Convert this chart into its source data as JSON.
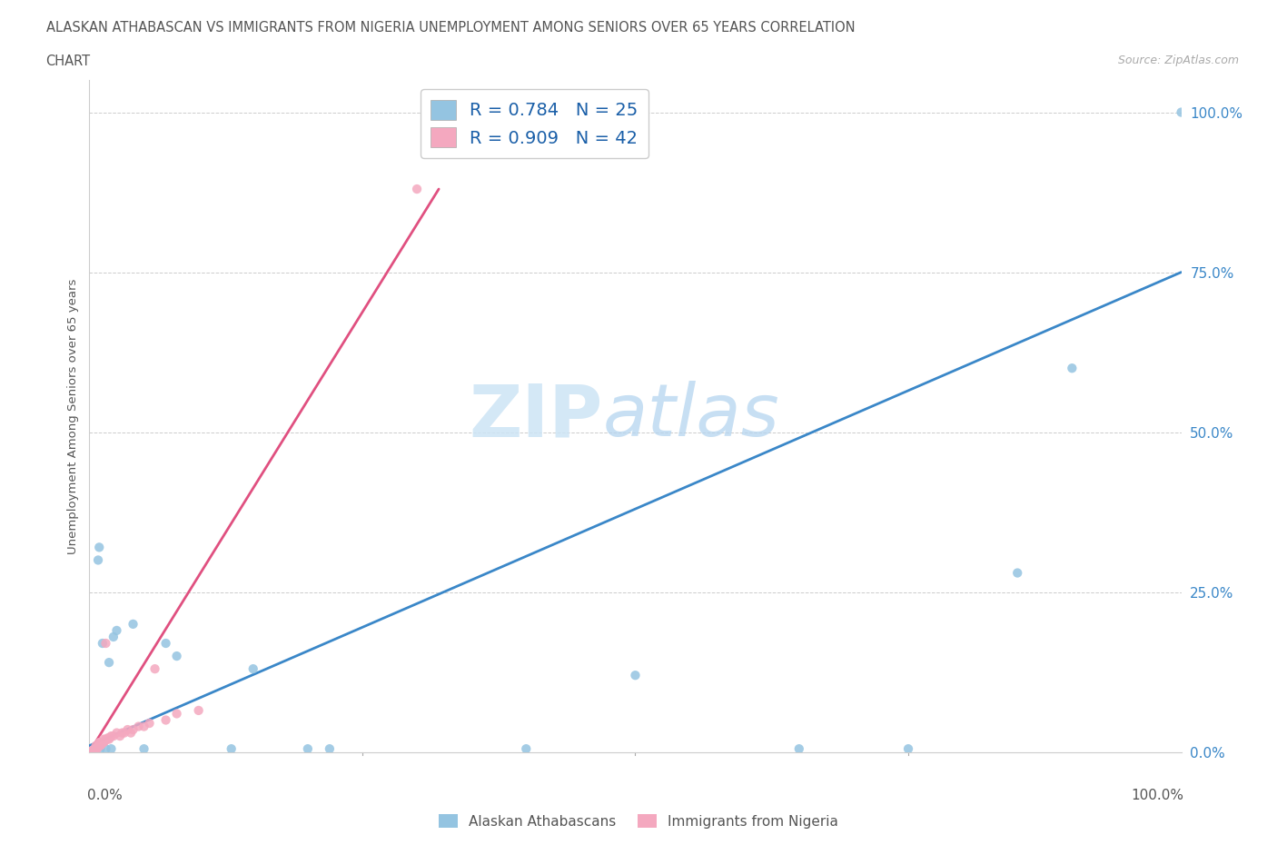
{
  "title_line1": "ALASKAN ATHABASCAN VS IMMIGRANTS FROM NIGERIA UNEMPLOYMENT AMONG SENIORS OVER 65 YEARS CORRELATION",
  "title_line2": "CHART",
  "source": "Source: ZipAtlas.com",
  "ylabel": "Unemployment Among Seniors over 65 years",
  "ytick_labels": [
    "0.0%",
    "25.0%",
    "50.0%",
    "75.0%",
    "100.0%"
  ],
  "ytick_values": [
    0,
    0.25,
    0.5,
    0.75,
    1.0
  ],
  "xtick_left": "0.0%",
  "xtick_right": "100.0%",
  "xlim": [
    0,
    1.0
  ],
  "ylim": [
    0,
    1.05
  ],
  "blue_color": "#94c4e1",
  "pink_color": "#f4a8bf",
  "blue_line_color": "#3a87c8",
  "pink_line_color": "#e05080",
  "blue_scatter_x": [
    0.005,
    0.008,
    0.009,
    0.01,
    0.012,
    0.015,
    0.018,
    0.02,
    0.022,
    0.025,
    0.04,
    0.05,
    0.07,
    0.08,
    0.13,
    0.15,
    0.2,
    0.22,
    0.4,
    0.5,
    0.65,
    0.75,
    0.85,
    0.9,
    1.0
  ],
  "blue_scatter_y": [
    0.005,
    0.3,
    0.32,
    0.005,
    0.17,
    0.005,
    0.14,
    0.005,
    0.18,
    0.19,
    0.2,
    0.005,
    0.17,
    0.15,
    0.005,
    0.13,
    0.005,
    0.005,
    0.005,
    0.12,
    0.005,
    0.005,
    0.28,
    0.6,
    1.0
  ],
  "pink_scatter_x": [
    0.0,
    0.002,
    0.003,
    0.004,
    0.005,
    0.006,
    0.006,
    0.007,
    0.008,
    0.008,
    0.009,
    0.009,
    0.01,
    0.01,
    0.011,
    0.012,
    0.013,
    0.013,
    0.014,
    0.015,
    0.015,
    0.016,
    0.017,
    0.018,
    0.019,
    0.02,
    0.022,
    0.025,
    0.028,
    0.03,
    0.032,
    0.035,
    0.038,
    0.04,
    0.045,
    0.05,
    0.055,
    0.06,
    0.07,
    0.08,
    0.1,
    0.3
  ],
  "pink_scatter_y": [
    0.0,
    0.0,
    0.003,
    0.003,
    0.005,
    0.005,
    0.01,
    0.005,
    0.008,
    0.01,
    0.01,
    0.015,
    0.01,
    0.015,
    0.012,
    0.015,
    0.015,
    0.02,
    0.017,
    0.02,
    0.17,
    0.02,
    0.022,
    0.02,
    0.023,
    0.025,
    0.025,
    0.03,
    0.025,
    0.03,
    0.03,
    0.035,
    0.03,
    0.035,
    0.04,
    0.04,
    0.045,
    0.13,
    0.05,
    0.06,
    0.065,
    0.88
  ],
  "blue_trend_x": [
    0.0,
    1.0
  ],
  "blue_trend_y": [
    0.01,
    0.75
  ],
  "pink_trend_x": [
    0.0,
    0.32
  ],
  "pink_trend_y": [
    0.0,
    0.88
  ]
}
